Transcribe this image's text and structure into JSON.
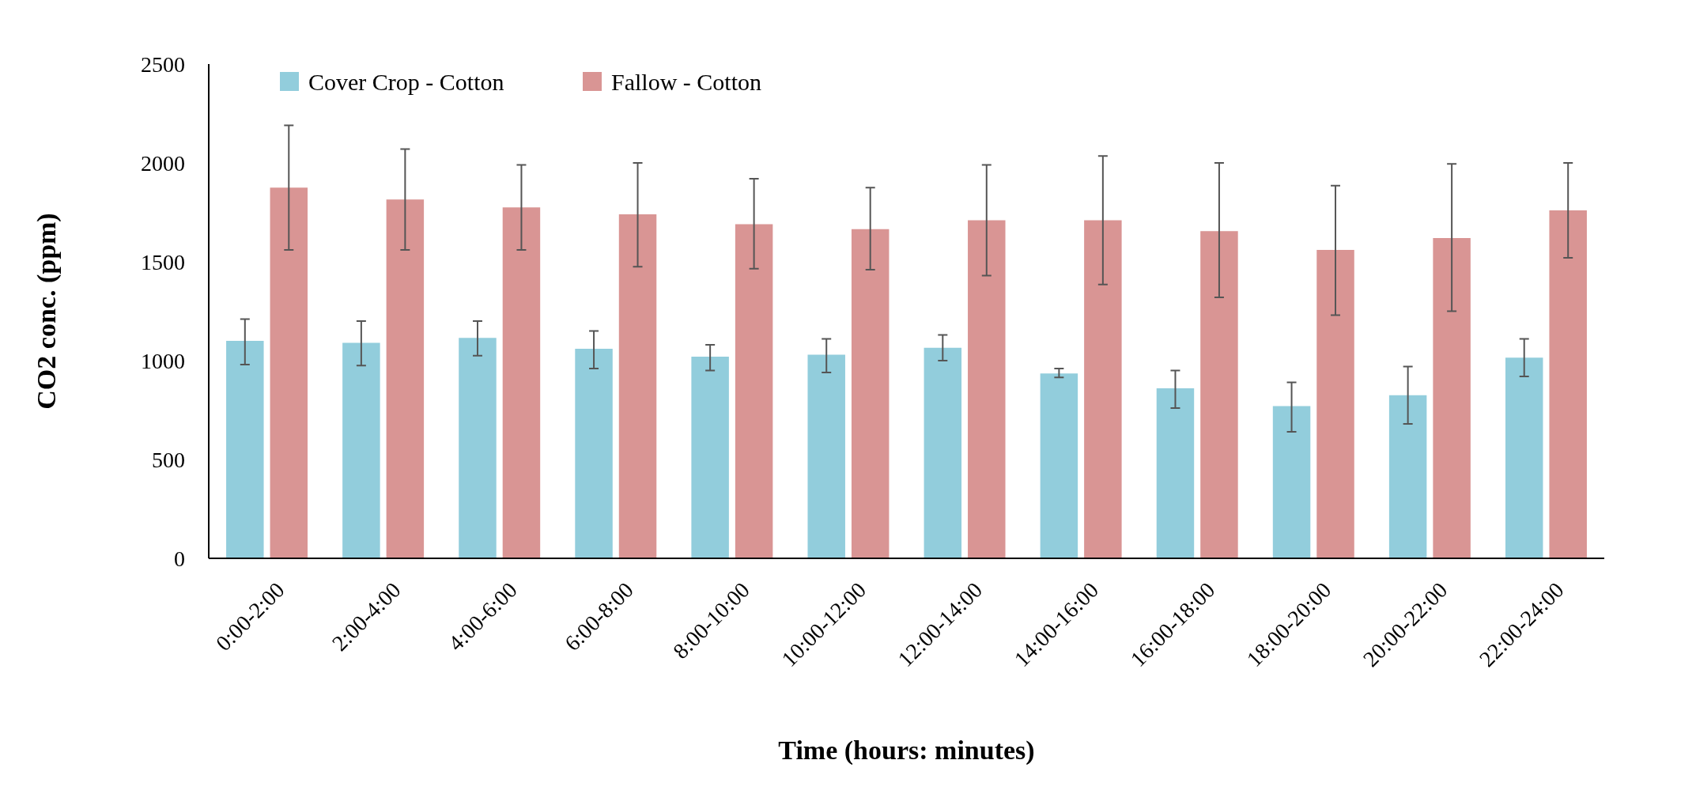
{
  "chart_data": {
    "type": "bar",
    "xlabel": "Time (hours: minutes)",
    "ylabel": "CO2 conc. (ppm)",
    "categories": [
      "0:00-2:00",
      "2:00-4:00",
      "4:00-6:00",
      "6:00-8:00",
      "8:00-10:00",
      "10:00-12:00",
      "12:00-14:00",
      "14:00-16:00",
      "16:00-18:00",
      "18:00-20:00",
      "20:00-22:00",
      "22:00-24:00"
    ],
    "series": [
      {
        "name": "Cover Crop - Cotton",
        "color": "#92cddc",
        "values": [
          1100,
          1090,
          1115,
          1060,
          1020,
          1030,
          1065,
          935,
          860,
          770,
          825,
          1015
        ],
        "errors": [
          [
            980,
            1210
          ],
          [
            975,
            1200
          ],
          [
            1025,
            1200
          ],
          [
            960,
            1150
          ],
          [
            950,
            1080
          ],
          [
            940,
            1110
          ],
          [
            1000,
            1130
          ],
          [
            915,
            960
          ],
          [
            760,
            950
          ],
          [
            640,
            890
          ],
          [
            680,
            970
          ],
          [
            920,
            1110
          ]
        ]
      },
      {
        "name": "Fallow - Cotton",
        "color": "#d99594",
        "values": [
          1875,
          1815,
          1775,
          1740,
          1690,
          1665,
          1710,
          1710,
          1655,
          1560,
          1620,
          1760
        ],
        "errors": [
          [
            1560,
            2190
          ],
          [
            1560,
            2070
          ],
          [
            1560,
            1990
          ],
          [
            1475,
            2000
          ],
          [
            1465,
            1920
          ],
          [
            1460,
            1875
          ],
          [
            1430,
            1990
          ],
          [
            1385,
            2035
          ],
          [
            1320,
            2000
          ],
          [
            1230,
            1885
          ],
          [
            1250,
            1995
          ],
          [
            1520,
            2000
          ]
        ]
      }
    ],
    "ylim": [
      0,
      2500
    ],
    "yticks": [
      0,
      500,
      1000,
      1500,
      2000,
      2500
    ],
    "grid": false,
    "legend": "top left"
  }
}
